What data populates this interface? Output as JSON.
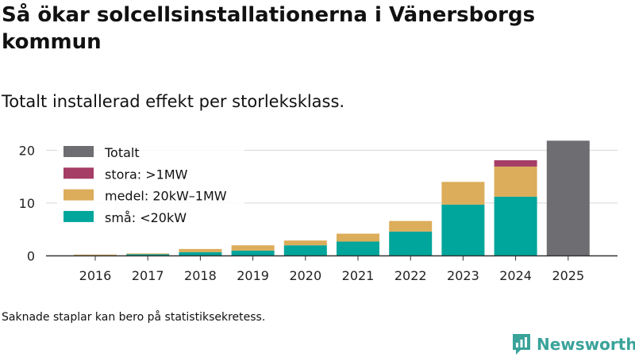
{
  "header": {
    "title": "Så ökar solcellsinstallationerna i Vänersborgs kommun",
    "subtitle": "Totalt installerad effekt per storleksklass."
  },
  "footer": {
    "note": "Saknade staplar kan bero på statistiksekretess.",
    "brand": "Newsworthy"
  },
  "icons": {
    "brand": "newsworthy-logo-icon"
  },
  "colors": {
    "small": "#00a59b",
    "medium": "#dcad5a",
    "large": "#a53d66",
    "total": "#6d6d72",
    "grid": "#d6d6d6",
    "axis": "#333333",
    "brand": "#3aa39a"
  },
  "chart_data": {
    "type": "bar",
    "stacked": true,
    "categories": [
      "2016",
      "2017",
      "2018",
      "2019",
      "2020",
      "2021",
      "2022",
      "2023",
      "2024",
      "2025"
    ],
    "series": [
      {
        "name": "små: <20kW",
        "key": "small",
        "values": [
          0.1,
          0.3,
          0.7,
          1.0,
          2.0,
          2.7,
          4.6,
          9.7,
          11.2,
          null
        ]
      },
      {
        "name": "medel: 20kW–1MW",
        "key": "medium",
        "values": [
          0.15,
          0.15,
          0.6,
          1.0,
          0.9,
          1.5,
          2.0,
          4.3,
          5.7,
          null
        ]
      },
      {
        "name": "stora: >1MW",
        "key": "large",
        "values": [
          0,
          0,
          0,
          0,
          0,
          0,
          0,
          0,
          1.2,
          null
        ]
      },
      {
        "name": "Totalt",
        "key": "total",
        "values": [
          null,
          null,
          null,
          null,
          null,
          null,
          null,
          null,
          null,
          21.8
        ]
      }
    ],
    "legend": [
      "Totalt",
      "stora: >1MW",
      "medel: 20kW–1MW",
      "små: <20kW"
    ],
    "legend_position": "top-left",
    "yticks": [
      0,
      10,
      20
    ],
    "ylim": [
      0,
      22
    ],
    "grid": true,
    "xlabel": "",
    "ylabel": ""
  }
}
